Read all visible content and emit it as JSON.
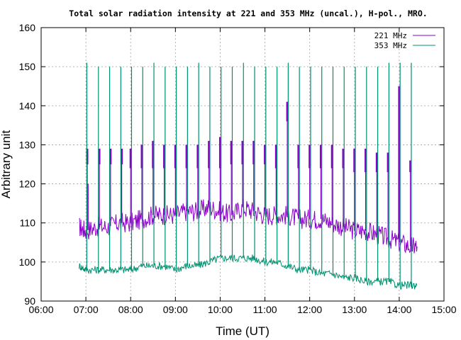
{
  "chart_data": {
    "type": "line",
    "title": "Total solar radiation intensity at 221 and 353 MHz (uncal.), H-pol., MRO.",
    "xlabel": "Time (UT)",
    "ylabel": "Arbitrary unit",
    "x_unit": "hours UT",
    "xlim": [
      6,
      15
    ],
    "ylim": [
      90,
      160
    ],
    "xticks": [
      {
        "value": 6,
        "label": "06:00"
      },
      {
        "value": 7,
        "label": "07:00"
      },
      {
        "value": 8,
        "label": "08:00"
      },
      {
        "value": 9,
        "label": "09:00"
      },
      {
        "value": 10,
        "label": "10:00"
      },
      {
        "value": 11,
        "label": "11:00"
      },
      {
        "value": 12,
        "label": "12:00"
      },
      {
        "value": 13,
        "label": "13:00"
      },
      {
        "value": 14,
        "label": "14:00"
      },
      {
        "value": 15,
        "label": "15:00"
      }
    ],
    "yticks": [
      {
        "value": 90,
        "label": "90"
      },
      {
        "value": 100,
        "label": "100"
      },
      {
        "value": 110,
        "label": "110"
      },
      {
        "value": 120,
        "label": "120"
      },
      {
        "value": 130,
        "label": "130"
      },
      {
        "value": 140,
        "label": "140"
      },
      {
        "value": 150,
        "label": "150"
      },
      {
        "value": 160,
        "label": "160"
      }
    ],
    "grid": true,
    "legend_position": "top-right",
    "series": [
      {
        "name": "221 MHz",
        "color": "#8a00c8",
        "x": [
          6.85,
          7.0,
          7.25,
          7.5,
          7.75,
          8.0,
          8.25,
          8.5,
          8.75,
          9.0,
          9.25,
          9.5,
          9.75,
          10.0,
          10.25,
          10.5,
          10.75,
          11.0,
          11.25,
          11.5,
          11.75,
          12.0,
          12.25,
          12.5,
          12.75,
          13.0,
          13.25,
          13.5,
          13.75,
          14.0,
          14.25,
          14.4
        ],
        "y": [
          109,
          108,
          109,
          109,
          110,
          110,
          111,
          112,
          112,
          112,
          113,
          113,
          114,
          113,
          112,
          114,
          113,
          112,
          112,
          112,
          111,
          111,
          111,
          110,
          109,
          108,
          108,
          107,
          106,
          105,
          104,
          104
        ],
        "spikes": [
          {
            "x": 7.03,
            "y": 129,
            "base": 125
          },
          {
            "x": 7.05,
            "y": 120
          },
          {
            "x": 7.3,
            "y": 129,
            "base": 125
          },
          {
            "x": 7.55,
            "y": 129,
            "base": 125
          },
          {
            "x": 7.8,
            "y": 129,
            "base": 125
          },
          {
            "x": 8.0,
            "y": 129,
            "base": 124
          },
          {
            "x": 8.25,
            "y": 130,
            "base": 124
          },
          {
            "x": 8.5,
            "y": 131,
            "base": 124
          },
          {
            "x": 8.75,
            "y": 130,
            "base": 124
          },
          {
            "x": 9.0,
            "y": 130,
            "base": 124
          },
          {
            "x": 9.25,
            "y": 130,
            "base": 124
          },
          {
            "x": 9.5,
            "y": 130,
            "base": 124
          },
          {
            "x": 9.75,
            "y": 131,
            "base": 124
          },
          {
            "x": 10.0,
            "y": 132,
            "base": 124
          },
          {
            "x": 10.25,
            "y": 131,
            "base": 125
          },
          {
            "x": 10.5,
            "y": 131,
            "base": 125
          },
          {
            "x": 10.75,
            "y": 131,
            "base": 125
          },
          {
            "x": 11.0,
            "y": 130,
            "base": 125
          },
          {
            "x": 11.25,
            "y": 130,
            "base": 124
          },
          {
            "x": 11.5,
            "y": 141,
            "base": 136
          },
          {
            "x": 11.75,
            "y": 130,
            "base": 124
          },
          {
            "x": 12.0,
            "y": 130,
            "base": 124
          },
          {
            "x": 12.25,
            "y": 130,
            "base": 124
          },
          {
            "x": 12.5,
            "y": 130,
            "base": 124
          },
          {
            "x": 12.75,
            "y": 129,
            "base": 124
          },
          {
            "x": 13.0,
            "y": 129,
            "base": 123
          },
          {
            "x": 13.25,
            "y": 129,
            "base": 123
          },
          {
            "x": 13.5,
            "y": 128,
            "base": 123
          },
          {
            "x": 13.75,
            "y": 128,
            "base": 123
          },
          {
            "x": 14.0,
            "y": 145,
            "base": 106
          },
          {
            "x": 14.25,
            "y": 126,
            "base": 123
          }
        ]
      },
      {
        "name": "353 MHz",
        "color": "#009070",
        "x": [
          6.85,
          7.0,
          7.25,
          7.5,
          7.75,
          8.0,
          8.25,
          8.5,
          8.75,
          9.0,
          9.25,
          9.5,
          9.75,
          10.0,
          10.25,
          10.5,
          10.75,
          11.0,
          11.25,
          11.5,
          11.75,
          12.0,
          12.25,
          12.5,
          12.75,
          13.0,
          13.25,
          13.5,
          13.75,
          14.0,
          14.25,
          14.4
        ],
        "y": [
          99,
          98,
          98,
          98,
          98,
          98,
          99,
          99,
          99,
          98,
          99,
          99,
          100,
          101,
          101,
          101,
          101,
          100,
          100,
          99,
          98,
          98,
          97,
          97,
          96,
          96,
          95,
          95,
          95,
          94,
          94,
          94
        ],
        "spikes": [
          {
            "x": 7.02,
            "y": 151
          },
          {
            "x": 7.28,
            "y": 150
          },
          {
            "x": 7.53,
            "y": 150
          },
          {
            "x": 7.78,
            "y": 150
          },
          {
            "x": 8.02,
            "y": 150
          },
          {
            "x": 8.27,
            "y": 150
          },
          {
            "x": 8.52,
            "y": 151
          },
          {
            "x": 8.77,
            "y": 150
          },
          {
            "x": 9.02,
            "y": 150
          },
          {
            "x": 9.27,
            "y": 150
          },
          {
            "x": 9.52,
            "y": 151
          },
          {
            "x": 9.77,
            "y": 150
          },
          {
            "x": 10.02,
            "y": 150
          },
          {
            "x": 10.27,
            "y": 150
          },
          {
            "x": 10.52,
            "y": 151
          },
          {
            "x": 10.77,
            "y": 150
          },
          {
            "x": 11.02,
            "y": 150
          },
          {
            "x": 11.27,
            "y": 150
          },
          {
            "x": 11.52,
            "y": 151
          },
          {
            "x": 11.77,
            "y": 150
          },
          {
            "x": 12.02,
            "y": 150
          },
          {
            "x": 12.27,
            "y": 150
          },
          {
            "x": 12.52,
            "y": 150
          },
          {
            "x": 12.77,
            "y": 150
          },
          {
            "x": 13.02,
            "y": 150
          },
          {
            "x": 13.27,
            "y": 150
          },
          {
            "x": 13.52,
            "y": 150
          },
          {
            "x": 13.77,
            "y": 151
          },
          {
            "x": 14.02,
            "y": 151
          },
          {
            "x": 14.27,
            "y": 151
          }
        ]
      }
    ]
  }
}
